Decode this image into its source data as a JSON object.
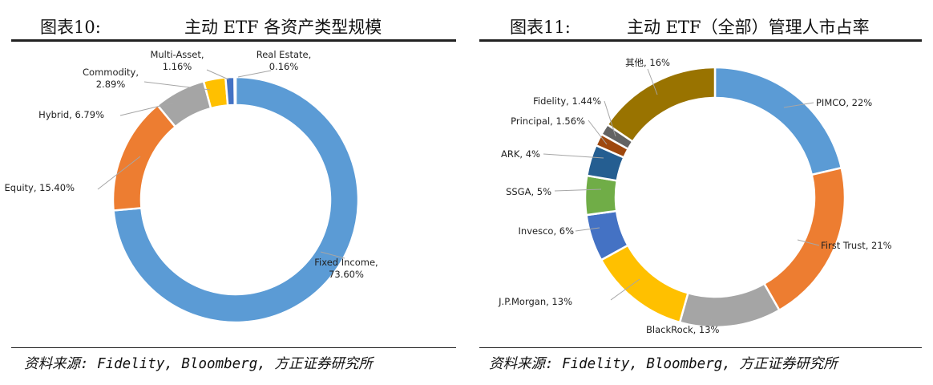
{
  "left": {
    "figure_number": "图表10:",
    "source": "资料来源: Fidelity, Bloomberg, 方正证券研究所"
  },
  "right": {
    "figure_number": "图表11:",
    "source": "资料来源: Fidelity, Bloomberg, 方正证券研究所"
  },
  "chart_data": [
    {
      "type": "pie",
      "donut": true,
      "title": "主动 ETF 各资产类型规模",
      "categories": [
        "Fixed Income",
        "Equity",
        "Hybrid",
        "Commodity",
        "Multi-Asset",
        "Real Estate"
      ],
      "values": [
        73.6,
        15.4,
        6.79,
        2.89,
        1.16,
        0.16
      ],
      "data_labels": [
        "73.60%",
        "15.40%",
        "6.79%",
        "2.89%",
        "1.16%",
        "0.16%"
      ],
      "colors": [
        "#5B9BD5",
        "#ED7D31",
        "#A5A5A5",
        "#FFC000",
        "#4472C4",
        "#70AD47"
      ],
      "start_angle_deg": 0,
      "direction": "clockwise",
      "legend": "none"
    },
    {
      "type": "pie",
      "donut": true,
      "title": "主动 ETF（全部）管理人市占率",
      "categories": [
        "PIMCO",
        "First Trust",
        "BlackRock",
        "J.P.Morgan",
        "Invesco",
        "SSGA",
        "ARK",
        "Principal",
        "Fidelity",
        "其他"
      ],
      "values": [
        22,
        21,
        13,
        13,
        6,
        5,
        4,
        1.56,
        1.44,
        16
      ],
      "data_labels": [
        "22%",
        "21%",
        "13%",
        "13%",
        "6%",
        "5%",
        "4%",
        "1.56%",
        "1.44%",
        "16%"
      ],
      "colors": [
        "#5B9BD5",
        "#ED7D31",
        "#A5A5A5",
        "#FFC000",
        "#4472C4",
        "#70AD47",
        "#255E91",
        "#9E480E",
        "#636363",
        "#997300"
      ],
      "start_angle_deg": 0,
      "direction": "clockwise",
      "legend": "none"
    }
  ]
}
